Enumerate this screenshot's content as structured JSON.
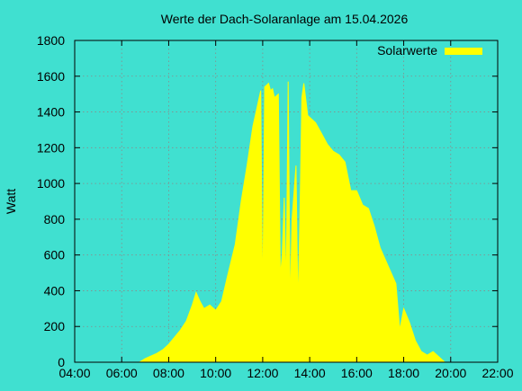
{
  "chart_data": {
    "type": "area",
    "title": "Werte der Dach-Solaranlage am 15.04.2026",
    "xlabel": "",
    "ylabel": "Watt",
    "xlim": [
      "04:00",
      "22:00"
    ],
    "ylim": [
      0,
      1800
    ],
    "x_ticks": [
      "04:00",
      "06:00",
      "08:00",
      "10:00",
      "12:00",
      "14:00",
      "16:00",
      "18:00",
      "20:00",
      "22:00"
    ],
    "y_ticks": [
      0,
      200,
      400,
      600,
      800,
      1000,
      1200,
      1400,
      1600,
      1800
    ],
    "grid": true,
    "legend_position": "top-right",
    "series": [
      {
        "name": "Solarwerte",
        "color": "#ffff00",
        "points": [
          [
            "06:45",
            0
          ],
          [
            "07:00",
            20
          ],
          [
            "07:30",
            50
          ],
          [
            "07:45",
            70
          ],
          [
            "08:00",
            100
          ],
          [
            "08:30",
            180
          ],
          [
            "08:45",
            230
          ],
          [
            "09:00",
            320
          ],
          [
            "09:10",
            390
          ],
          [
            "09:20",
            340
          ],
          [
            "09:30",
            300
          ],
          [
            "09:45",
            320
          ],
          [
            "10:00",
            290
          ],
          [
            "10:15",
            340
          ],
          [
            "10:30",
            480
          ],
          [
            "10:50",
            660
          ],
          [
            "11:05",
            900
          ],
          [
            "11:20",
            1100
          ],
          [
            "11:35",
            1320
          ],
          [
            "11:45",
            1420
          ],
          [
            "11:55",
            1520
          ],
          [
            "12:00",
            300
          ],
          [
            "12:05",
            1540
          ],
          [
            "12:15",
            1560
          ],
          [
            "12:20",
            1520
          ],
          [
            "12:25",
            1530
          ],
          [
            "12:30",
            1480
          ],
          [
            "12:40",
            1500
          ],
          [
            "12:45",
            480
          ],
          [
            "12:50",
            600
          ],
          [
            "12:55",
            920
          ],
          [
            "13:00",
            400
          ],
          [
            "13:05",
            1570
          ],
          [
            "13:10",
            300
          ],
          [
            "13:15",
            800
          ],
          [
            "13:25",
            1100
          ],
          [
            "13:30",
            300
          ],
          [
            "13:35",
            800
          ],
          [
            "13:40",
            1480
          ],
          [
            "13:45",
            1560
          ],
          [
            "13:55",
            1380
          ],
          [
            "14:15",
            1340
          ],
          [
            "14:30",
            1280
          ],
          [
            "14:45",
            1220
          ],
          [
            "15:00",
            1180
          ],
          [
            "15:15",
            1160
          ],
          [
            "15:30",
            1120
          ],
          [
            "15:45",
            960
          ],
          [
            "16:00",
            960
          ],
          [
            "16:15",
            880
          ],
          [
            "16:30",
            860
          ],
          [
            "16:45",
            760
          ],
          [
            "17:00",
            640
          ],
          [
            "17:20",
            540
          ],
          [
            "17:40",
            440
          ],
          [
            "17:50",
            180
          ],
          [
            "18:00",
            300
          ],
          [
            "18:15",
            220
          ],
          [
            "18:30",
            120
          ],
          [
            "18:45",
            60
          ],
          [
            "19:00",
            40
          ],
          [
            "19:15",
            60
          ],
          [
            "19:30",
            30
          ],
          [
            "19:45",
            0
          ]
        ]
      }
    ]
  }
}
